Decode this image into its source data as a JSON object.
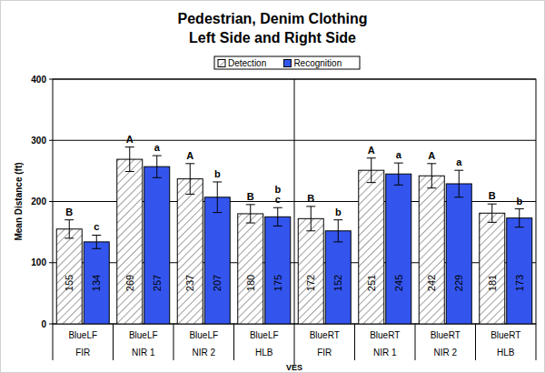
{
  "chart_data": {
    "type": "bar",
    "title": "Pedestrian, Denim Clothing",
    "subtitle": "Left Side and Right Side",
    "x_label": "VES",
    "y_label": "Mean Distance (ft)",
    "categories": [
      "BlueLF",
      "BlueLF",
      "BlueLF",
      "BlueLF",
      "BlueRT",
      "BlueRT",
      "BlueRT",
      "BlueRT"
    ],
    "category_groups": [
      "FIR",
      "NIR 1",
      "NIR 2",
      "HLB",
      "FIR",
      "NIR 1",
      "NIR 2",
      "HLB"
    ],
    "series": [
      {
        "name": "Detection",
        "color": "#ffffff",
        "values": [
          155,
          269,
          237,
          180,
          172,
          251,
          242,
          181
        ],
        "errors": [
          15,
          20,
          25,
          15,
          20,
          20,
          20,
          15
        ],
        "letters": [
          "B",
          "A",
          "A",
          "B",
          "B",
          "A",
          "A",
          "B"
        ]
      },
      {
        "name": "Recognition",
        "color": "#3355ee",
        "values": [
          134,
          257,
          207,
          175,
          152,
          245,
          229,
          173
        ],
        "errors": [
          11,
          18,
          25,
          15,
          18,
          18,
          22,
          15
        ],
        "letters": [
          "c",
          "a",
          "b",
          "bc",
          "b",
          "a",
          "a",
          "b"
        ]
      }
    ],
    "ylim": [
      0,
      400
    ],
    "yticks": [
      0,
      100,
      200,
      300,
      400
    ],
    "grid": true,
    "legend": "top",
    "data_labels": true
  }
}
